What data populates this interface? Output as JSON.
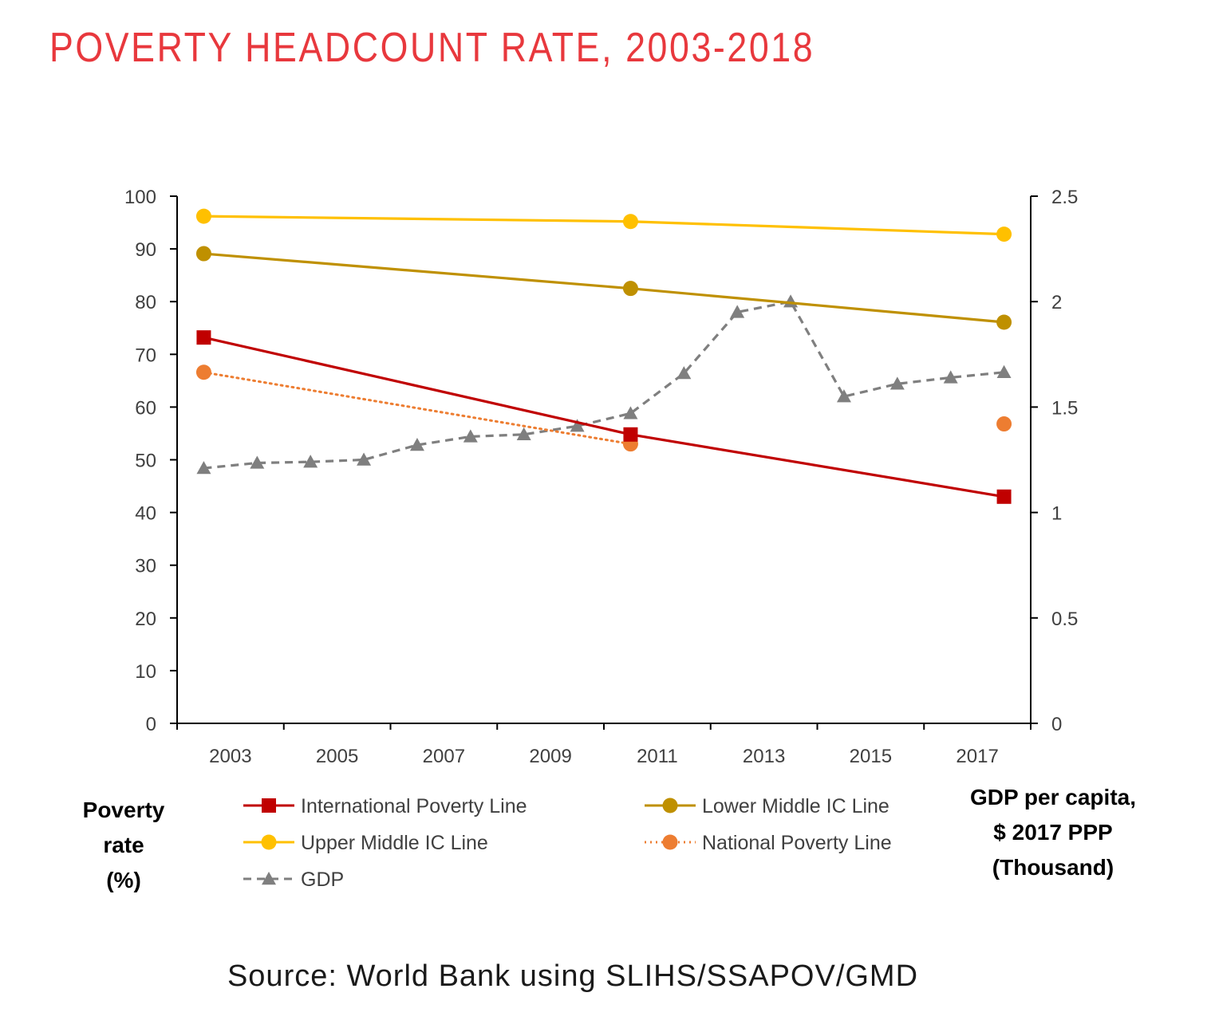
{
  "title": "POVERTY HEADCOUNT RATE, 2003-2018",
  "source": "Source: World Bank using SLIHS/SSAPOV/GMD",
  "y_left_title": [
    "Poverty",
    "rate",
    "(%)"
  ],
  "y_right_title": [
    "GDP per capita,",
    "$ 2017 PPP",
    "(Thousand)"
  ],
  "chart_data": {
    "type": "line",
    "x_ticks": [
      "2003",
      "2005",
      "2007",
      "2009",
      "2011",
      "2013",
      "2015",
      "2017"
    ],
    "xlim": [
      2002.5,
      2018.5
    ],
    "ylim_left": [
      0,
      100
    ],
    "yticks_left": [
      "0",
      "10",
      "20",
      "30",
      "40",
      "50",
      "60",
      "70",
      "80",
      "90",
      "100"
    ],
    "ylim_right": [
      0,
      2.5
    ],
    "yticks_right": [
      "0",
      "0.5",
      "1",
      "1.5",
      "2",
      "2.5"
    ],
    "legend_position": "bottom",
    "series": [
      {
        "name": "International Poverty Line",
        "axis": "left",
        "color": "#c00000",
        "marker": "square",
        "dash": "solid",
        "points": [
          [
            2003,
            73.2
          ],
          [
            2011,
            54.8
          ],
          [
            2018,
            43.0
          ]
        ]
      },
      {
        "name": "Lower Middle IC Line",
        "axis": "left",
        "color": "#bf9000",
        "marker": "circle",
        "dash": "solid",
        "points": [
          [
            2003,
            89.1
          ],
          [
            2011,
            82.5
          ],
          [
            2018,
            76.1
          ]
        ]
      },
      {
        "name": "Upper Middle IC Line",
        "axis": "left",
        "color": "#ffc000",
        "marker": "circle",
        "dash": "solid",
        "points": [
          [
            2003,
            96.2
          ],
          [
            2011,
            95.2
          ],
          [
            2018,
            92.8
          ]
        ]
      },
      {
        "name": "National Poverty Line",
        "axis": "left",
        "color": "#ed7d31",
        "marker": "circle",
        "dash": "dotted",
        "points": [
          [
            2003,
            66.6
          ],
          [
            2011,
            53.0
          ]
        ],
        "extra_points": [
          [
            2018,
            56.8
          ]
        ]
      },
      {
        "name": "GDP",
        "axis": "right",
        "color": "#7f7f7f",
        "marker": "triangle",
        "dash": "dashed",
        "points": [
          [
            2003,
            1.21
          ],
          [
            2004,
            1.235
          ],
          [
            2005,
            1.24
          ],
          [
            2006,
            1.25
          ],
          [
            2007,
            1.32
          ],
          [
            2008,
            1.36
          ],
          [
            2009,
            1.37
          ],
          [
            2010,
            1.41
          ],
          [
            2011,
            1.47
          ],
          [
            2012,
            1.66
          ],
          [
            2013,
            1.95
          ],
          [
            2014,
            2.0
          ],
          [
            2015,
            1.55
          ],
          [
            2016,
            1.61
          ],
          [
            2017,
            1.64
          ],
          [
            2018,
            1.665
          ]
        ]
      }
    ]
  }
}
